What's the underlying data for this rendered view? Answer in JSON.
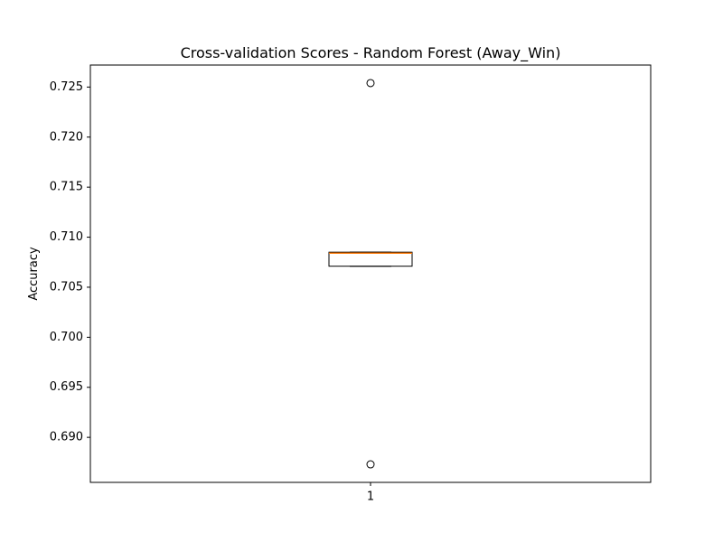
{
  "chart_data": {
    "type": "box",
    "title": "Cross-validation Scores - Random Forest (Away_Win)",
    "xlabel": "",
    "ylabel": "Accuracy",
    "categories": [
      "1"
    ],
    "ylim": [
      0.6855,
      0.7272
    ],
    "yticks": [
      0.69,
      0.695,
      0.7,
      0.705,
      0.71,
      0.715,
      0.72,
      0.725
    ],
    "ytick_labels": [
      "0.690",
      "0.695",
      "0.700",
      "0.705",
      "0.710",
      "0.715",
      "0.720",
      "0.725"
    ],
    "grid": false,
    "boxes": [
      {
        "category": "1",
        "q1": 0.7071,
        "median": 0.7084,
        "q3": 0.7085,
        "whisker_low": 0.7071,
        "whisker_high": 0.7085,
        "outliers": [
          0.7254,
          0.6873
        ]
      }
    ],
    "colors": {
      "box": "#000000",
      "median": "#ff7f0e",
      "outlier": "#000000"
    }
  }
}
